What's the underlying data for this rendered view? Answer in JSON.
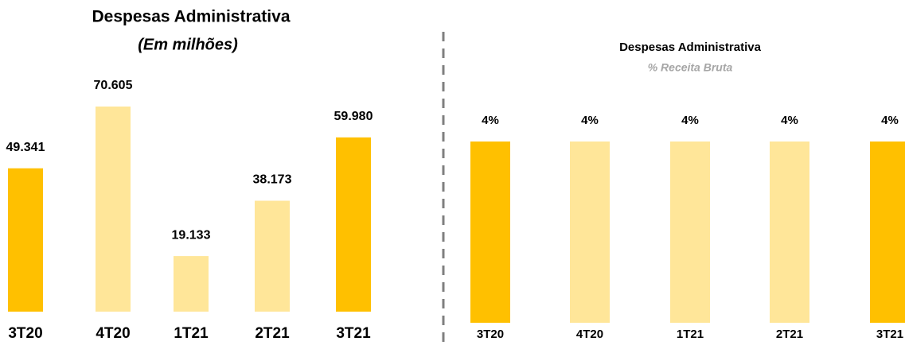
{
  "chart_data": [
    {
      "type": "bar",
      "title": "Despesas Administrativa",
      "subtitle": "(Em milhões)",
      "categories": [
        "3T20",
        "4T20",
        "1T21",
        "2T21",
        "3T21"
      ],
      "values": [
        49.341,
        70.605,
        19.133,
        38.173,
        59.98
      ],
      "value_labels": [
        "49.341",
        "70.605",
        "19.133",
        "38.173",
        "59.980"
      ],
      "colors": [
        "#ffc000",
        "#ffe699",
        "#ffe699",
        "#ffe699",
        "#ffc000"
      ]
    },
    {
      "type": "bar",
      "title": "Despesas Administrativa",
      "subtitle": "% Receita Bruta",
      "categories": [
        "3T20",
        "4T20",
        "1T21",
        "2T21",
        "3T21"
      ],
      "values": [
        4,
        4,
        4,
        4,
        4
      ],
      "value_labels": [
        "4%",
        "4%",
        "4%",
        "4%",
        "4%"
      ],
      "colors": [
        "#ffc000",
        "#ffe699",
        "#ffe699",
        "#ffe699",
        "#ffc000"
      ]
    }
  ]
}
